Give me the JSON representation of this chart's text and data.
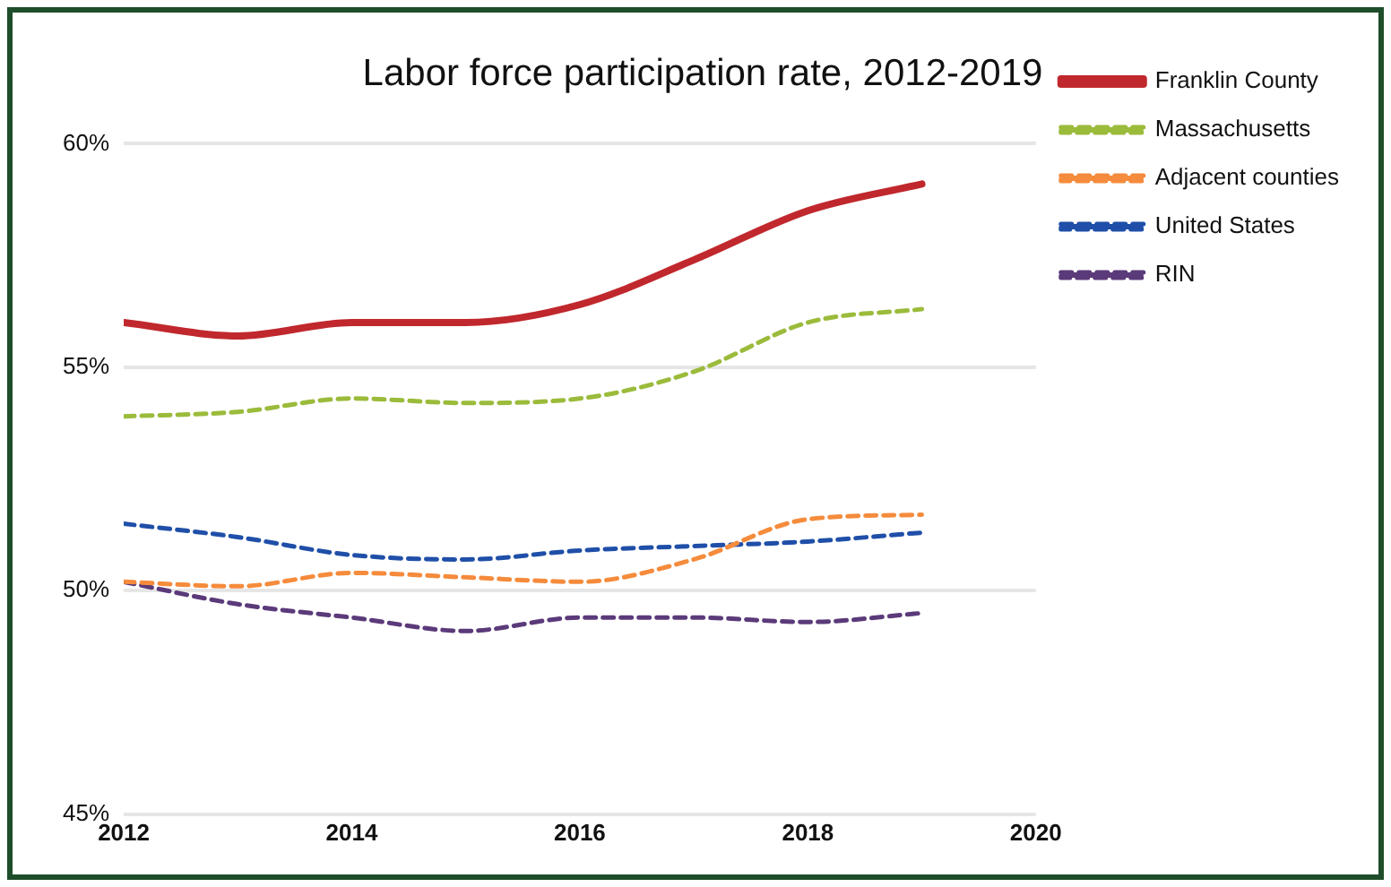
{
  "chart_data": {
    "type": "line",
    "title": "Labor force participation rate, 2012-2019",
    "x": [
      2012,
      2013,
      2014,
      2015,
      2016,
      2017,
      2018,
      2019
    ],
    "xlim": [
      2012,
      2020
    ],
    "xticks": [
      2012,
      2014,
      2016,
      2018,
      2020
    ],
    "ylim": [
      45,
      60
    ],
    "yticks": [
      {
        "value": 45,
        "label": "45%"
      },
      {
        "value": 50,
        "label": "50%"
      },
      {
        "value": 55,
        "label": "55%"
      },
      {
        "value": 60,
        "label": "60%"
      }
    ],
    "grid": "y",
    "legend": "right",
    "marker": "none",
    "series": [
      {
        "name": "Franklin County",
        "color": "#c0282d",
        "line_style": "solid",
        "values": [
          56.0,
          55.7,
          56.0,
          56.0,
          56.4,
          57.4,
          58.5,
          59.1
        ]
      },
      {
        "name": "Massachusetts",
        "color": "#9bbb3b",
        "line_style": "dashed",
        "values": [
          53.9,
          54.0,
          54.3,
          54.2,
          54.3,
          54.9,
          56.0,
          56.3
        ]
      },
      {
        "name": "Adjacent counties",
        "color": "#f58b3c",
        "line_style": "dashed",
        "values": [
          50.2,
          50.1,
          50.4,
          50.3,
          50.2,
          50.7,
          51.6,
          51.7
        ]
      },
      {
        "name": "United States",
        "color": "#1f4fa8",
        "line_style": "dashed",
        "values": [
          51.5,
          51.2,
          50.8,
          50.7,
          50.9,
          51.0,
          51.1,
          51.3
        ]
      },
      {
        "name": "RIN",
        "color": "#5b3a7a",
        "line_style": "dashed",
        "values": [
          50.2,
          49.7,
          49.4,
          49.1,
          49.4,
          49.4,
          49.3,
          49.5
        ]
      }
    ]
  }
}
